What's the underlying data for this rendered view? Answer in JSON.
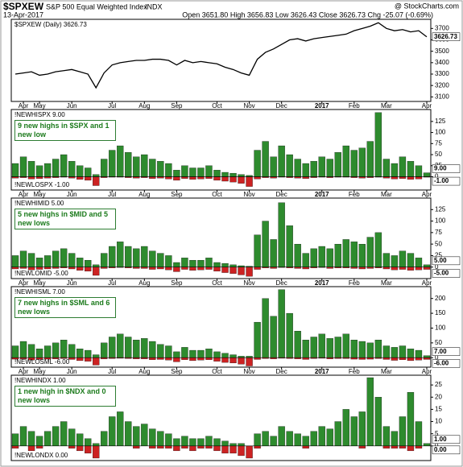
{
  "header": {
    "symbol": "$SPXEW",
    "name": "S&P 500 Equal Weighted Index",
    "exchange": "INDX",
    "date": "13-Apr-2017",
    "quote": "Open 3651.80  High 3656.83  Low 3626.43  Close 3626.73  Chg -25.07 (-0.69%)",
    "credit": "@ StockCharts.com"
  },
  "chart_data": [
    {
      "type": "line",
      "legend": "$SPXEW (Daily) 3626.73",
      "last_label": "3626.73",
      "color": "#000000",
      "categories": [
        null,
        "Apr",
        null,
        "May",
        null,
        null,
        null,
        "Jun",
        null,
        null,
        null,
        null,
        "Jul",
        null,
        null,
        null,
        "Aug",
        null,
        null,
        null,
        "Sep",
        null,
        null,
        null,
        null,
        "Oct",
        null,
        null,
        null,
        "Nov",
        null,
        null,
        null,
        "Dec",
        null,
        null,
        null,
        null,
        "2017",
        null,
        null,
        null,
        "Feb",
        null,
        null,
        null,
        "Mar",
        null,
        null,
        null,
        null,
        "Apr"
      ],
      "values": [
        3300,
        3310,
        3320,
        3290,
        3300,
        3320,
        3330,
        3340,
        3320,
        3300,
        3180,
        3310,
        3380,
        3400,
        3410,
        3420,
        3420,
        3430,
        3430,
        3420,
        3380,
        3420,
        3400,
        3410,
        3400,
        3390,
        3360,
        3340,
        3310,
        3290,
        3430,
        3490,
        3520,
        3560,
        3600,
        3610,
        3590,
        3610,
        3620,
        3630,
        3640,
        3650,
        3680,
        3700,
        3720,
        3750,
        3700,
        3680,
        3690,
        3670,
        3680,
        3626.73
      ],
      "ylim": [
        3060,
        3780
      ],
      "yticks": [
        3100,
        3200,
        3300,
        3400,
        3500,
        3600,
        3700
      ]
    },
    {
      "type": "bar",
      "annotation": "9 new highs in $SPX and 1 new low",
      "categories": [
        null,
        "Apr",
        null,
        "May",
        null,
        null,
        null,
        "Jun",
        null,
        null,
        null,
        null,
        "Jul",
        null,
        null,
        null,
        "Aug",
        null,
        null,
        null,
        "Sep",
        null,
        null,
        null,
        null,
        "Oct",
        null,
        null,
        null,
        "Nov",
        null,
        null,
        null,
        "Dec",
        null,
        null,
        null,
        null,
        "2017",
        null,
        null,
        null,
        "Feb",
        null,
        null,
        null,
        "Mar",
        null,
        null,
        null,
        null,
        "Apr"
      ],
      "series": [
        {
          "name": "!NEWHISPX 9.00",
          "current_label": "9.00",
          "color": "#2e8b2e",
          "values": [
            30,
            45,
            35,
            25,
            30,
            40,
            50,
            35,
            25,
            20,
            5,
            40,
            60,
            70,
            55,
            45,
            50,
            40,
            35,
            30,
            15,
            25,
            20,
            20,
            25,
            15,
            10,
            8,
            5,
            3,
            60,
            80,
            45,
            70,
            50,
            40,
            30,
            35,
            45,
            40,
            55,
            70,
            60,
            65,
            80,
            145,
            40,
            30,
            45,
            35,
            25,
            9
          ]
        },
        {
          "name": "!NEWLOSPX -1.00",
          "current_label": "-1.00",
          "color": "#cc2222",
          "values": [
            -3,
            -2,
            -5,
            -4,
            -3,
            -2,
            -1,
            -3,
            -6,
            -8,
            -20,
            -2,
            -1,
            -1,
            -2,
            -3,
            -2,
            -4,
            -3,
            -5,
            -8,
            -4,
            -6,
            -5,
            -4,
            -8,
            -10,
            -12,
            -15,
            -22,
            -5,
            -2,
            -3,
            -1,
            -2,
            -3,
            -4,
            -2,
            -1,
            -2,
            -1,
            -1,
            -2,
            -3,
            -2,
            -1,
            -3,
            -5,
            -4,
            -6,
            -5,
            -1
          ]
        }
      ],
      "ylim": [
        -30,
        152
      ],
      "yticks": [
        0,
        25,
        50,
        75,
        100,
        125
      ]
    },
    {
      "type": "bar",
      "annotation": "5 new highs in $MID and 5 new lows",
      "categories": [
        null,
        "Apr",
        null,
        "May",
        null,
        null,
        null,
        "Jun",
        null,
        null,
        null,
        null,
        "Jul",
        null,
        null,
        null,
        "Aug",
        null,
        null,
        null,
        "Sep",
        null,
        null,
        null,
        null,
        "Oct",
        null,
        null,
        null,
        "Nov",
        null,
        null,
        null,
        "Dec",
        null,
        null,
        null,
        null,
        "2017",
        null,
        null,
        null,
        "Feb",
        null,
        null,
        null,
        "Mar",
        null,
        null,
        null,
        null,
        "Apr"
      ],
      "series": [
        {
          "name": "!NEWHIMID 5.00",
          "current_label": "5.00",
          "color": "#2e8b2e",
          "values": [
            25,
            35,
            30,
            20,
            25,
            35,
            40,
            30,
            20,
            15,
            5,
            30,
            45,
            55,
            45,
            40,
            45,
            35,
            30,
            25,
            10,
            20,
            15,
            15,
            20,
            10,
            8,
            5,
            3,
            2,
            70,
            100,
            60,
            140,
            90,
            50,
            30,
            40,
            45,
            40,
            50,
            60,
            55,
            50,
            65,
            75,
            30,
            25,
            35,
            30,
            20,
            5
          ]
        },
        {
          "name": "!NEWLOMID -5.00",
          "current_label": "-5.00",
          "color": "#cc2222",
          "values": [
            -4,
            -3,
            -6,
            -5,
            -4,
            -3,
            -2,
            -4,
            -7,
            -9,
            -18,
            -3,
            -2,
            -1,
            -2,
            -3,
            -3,
            -5,
            -4,
            -6,
            -10,
            -5,
            -7,
            -6,
            -5,
            -9,
            -12,
            -14,
            -17,
            -20,
            -5,
            -2,
            -3,
            -1,
            -2,
            -3,
            -4,
            -2,
            -1,
            -3,
            -2,
            -2,
            -3,
            -4,
            -3,
            -2,
            -4,
            -6,
            -5,
            -7,
            -6,
            -5
          ]
        }
      ],
      "ylim": [
        -25,
        150
      ],
      "yticks": [
        0,
        25,
        50,
        75,
        100,
        125
      ]
    },
    {
      "type": "bar",
      "annotation": "7 new highs in $SML and 6 new lows",
      "categories": [
        null,
        "Apr",
        null,
        "May",
        null,
        null,
        null,
        "Jun",
        null,
        null,
        null,
        null,
        "Jul",
        null,
        null,
        null,
        "Aug",
        null,
        null,
        null,
        "Sep",
        null,
        null,
        null,
        null,
        "Oct",
        null,
        null,
        null,
        "Nov",
        null,
        null,
        null,
        "Dec",
        null,
        null,
        null,
        null,
        "2017",
        null,
        null,
        null,
        "Feb",
        null,
        null,
        null,
        "Mar",
        null,
        null,
        null,
        null,
        "Apr"
      ],
      "series": [
        {
          "name": "!NEWHISML 7.00",
          "current_label": "7.00",
          "color": "#2e8b2e",
          "values": [
            40,
            55,
            45,
            30,
            40,
            50,
            60,
            45,
            30,
            25,
            10,
            50,
            70,
            80,
            70,
            60,
            65,
            55,
            45,
            40,
            20,
            35,
            25,
            25,
            30,
            20,
            15,
            10,
            5,
            5,
            120,
            200,
            140,
            230,
            150,
            90,
            60,
            70,
            80,
            65,
            70,
            80,
            60,
            55,
            50,
            60,
            40,
            35,
            40,
            30,
            25,
            7
          ]
        },
        {
          "name": "!NEWLOSML -6.00",
          "current_label": "-6.00",
          "color": "#cc2222",
          "values": [
            -5,
            -4,
            -8,
            -6,
            -5,
            -4,
            -3,
            -6,
            -10,
            -12,
            -25,
            -4,
            -3,
            -2,
            -3,
            -4,
            -4,
            -7,
            -6,
            -8,
            -14,
            -7,
            -10,
            -8,
            -7,
            -12,
            -16,
            -18,
            -22,
            -28,
            -6,
            -3,
            -4,
            -2,
            -3,
            -4,
            -6,
            -3,
            -2,
            -4,
            -3,
            -3,
            -5,
            -6,
            -5,
            -3,
            -6,
            -9,
            -7,
            -10,
            -8,
            -6
          ]
        }
      ],
      "ylim": [
        -32,
        240
      ],
      "yticks": [
        0,
        50,
        100,
        150,
        200
      ]
    },
    {
      "type": "bar",
      "annotation": "1 new high in $NDX and 0 new lows",
      "categories": [
        null,
        "Apr",
        null,
        "May",
        null,
        null,
        null,
        "Jun",
        null,
        null,
        null,
        null,
        "Jul",
        null,
        null,
        null,
        "Aug",
        null,
        null,
        null,
        "Sep",
        null,
        null,
        null,
        null,
        "Oct",
        null,
        null,
        null,
        "Nov",
        null,
        null,
        null,
        "Dec",
        null,
        null,
        null,
        null,
        "2017",
        null,
        null,
        null,
        "Feb",
        null,
        null,
        null,
        "Mar",
        null,
        null,
        null,
        null,
        "Apr"
      ],
      "series": [
        {
          "name": "!NEWHINDX 1.00",
          "current_label": "1.00",
          "color": "#2e8b2e",
          "values": [
            5,
            8,
            6,
            4,
            6,
            8,
            10,
            7,
            5,
            3,
            1,
            6,
            12,
            14,
            10,
            8,
            9,
            7,
            6,
            5,
            3,
            4,
            3,
            3,
            4,
            3,
            2,
            1,
            1,
            0,
            5,
            6,
            4,
            8,
            6,
            5,
            4,
            6,
            8,
            7,
            10,
            15,
            12,
            14,
            28,
            20,
            8,
            6,
            12,
            22,
            10,
            1
          ]
        },
        {
          "name": "!NEWLONDX 0.00",
          "current_label": "0.00",
          "color": "#cc2222",
          "values": [
            -1,
            0,
            -2,
            -1,
            0,
            0,
            0,
            -1,
            -2,
            -3,
            -5,
            0,
            0,
            0,
            0,
            -1,
            0,
            -1,
            -1,
            -1,
            -2,
            -1,
            -2,
            -1,
            -1,
            -2,
            -3,
            -3,
            -4,
            -5,
            -1,
            0,
            0,
            0,
            0,
            0,
            -1,
            0,
            0,
            0,
            0,
            0,
            0,
            -1,
            0,
            0,
            -1,
            -1,
            -1,
            -2,
            -1,
            0
          ]
        }
      ],
      "ylim": [
        -6,
        29
      ],
      "yticks": [
        0,
        5,
        10,
        15,
        20,
        25
      ]
    }
  ]
}
